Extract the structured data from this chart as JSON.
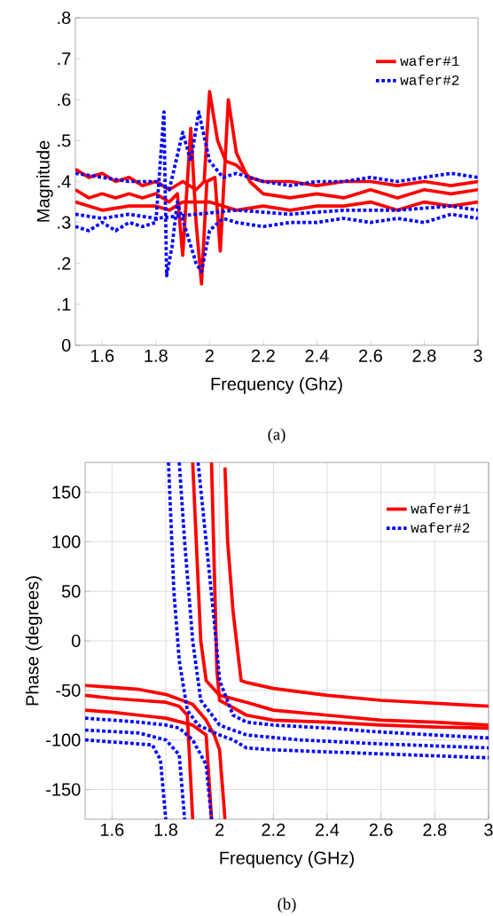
{
  "chart_data": [
    {
      "type": "line",
      "xlabel": "Frequency (Ghz)",
      "ylabel": "Magnitude",
      "annotations": [
        "(a)"
      ],
      "legend": "top right",
      "xlim": [
        1.5,
        3
      ],
      "xticks": [
        1.6,
        1.8,
        2,
        2.2,
        2.4,
        2.6,
        2.8,
        3
      ],
      "ylim": [
        0,
        0.8
      ],
      "yticks": [
        0,
        {
          "value": 0.1,
          "label": ".1"
        },
        {
          "value": 0.2,
          "label": ".2"
        },
        {
          "value": 0.3,
          "label": ".3"
        },
        {
          "value": 0.4,
          "label": ".4"
        },
        {
          "value": 0.5,
          "label": ".5"
        },
        {
          "value": 0.6,
          "label": ".6"
        },
        {
          "value": 0.7,
          "label": ".7"
        },
        {
          "value": 0.8,
          "label": ".8"
        }
      ],
      "series": [
        {
          "name": "wafer#1",
          "color": "#ff0000",
          "line_style": "solid",
          "x": [
            1.5,
            1.55,
            1.6,
            1.65,
            1.7,
            1.75,
            1.8,
            1.85,
            1.9,
            1.95,
            1.98,
            2.0,
            2.03,
            2.06,
            2.1,
            2.15,
            2.2,
            2.3,
            2.4,
            2.5,
            2.6,
            2.7,
            2.8,
            2.9,
            3.0
          ],
          "values": [
            0.43,
            0.41,
            0.42,
            0.4,
            0.41,
            0.39,
            0.4,
            0.38,
            0.4,
            0.38,
            0.4,
            0.62,
            0.5,
            0.45,
            0.44,
            0.41,
            0.4,
            0.4,
            0.39,
            0.4,
            0.4,
            0.39,
            0.4,
            0.39,
            0.4
          ]
        },
        {
          "color": "#ff0000",
          "line_style": "solid",
          "x": [
            1.5,
            1.55,
            1.6,
            1.65,
            1.7,
            1.75,
            1.8,
            1.85,
            1.88,
            1.9,
            1.93,
            1.95,
            1.97,
            1.99,
            2.02,
            2.04,
            2.07,
            2.1,
            2.15,
            2.2,
            2.3,
            2.4,
            2.5,
            2.6,
            2.7,
            2.8,
            2.9,
            3.0
          ],
          "values": [
            0.38,
            0.36,
            0.37,
            0.36,
            0.37,
            0.36,
            0.37,
            0.35,
            0.37,
            0.22,
            0.53,
            0.3,
            0.15,
            0.4,
            0.41,
            0.23,
            0.6,
            0.47,
            0.4,
            0.37,
            0.36,
            0.37,
            0.36,
            0.38,
            0.36,
            0.38,
            0.37,
            0.38
          ]
        },
        {
          "color": "#ff0000",
          "line_style": "solid",
          "x": [
            1.5,
            1.6,
            1.7,
            1.8,
            1.85,
            1.9,
            2.0,
            2.1,
            2.2,
            2.3,
            2.4,
            2.5,
            2.6,
            2.7,
            2.8,
            2.9,
            3.0
          ],
          "values": [
            0.35,
            0.33,
            0.34,
            0.34,
            0.33,
            0.35,
            0.35,
            0.33,
            0.34,
            0.33,
            0.34,
            0.34,
            0.35,
            0.33,
            0.35,
            0.34,
            0.35
          ]
        },
        {
          "name": "wafer#2",
          "color": "#0000ff",
          "line_style": "dotted",
          "x": [
            1.5,
            1.6,
            1.7,
            1.8,
            1.85,
            1.9,
            1.93,
            1.96,
            2.0,
            2.05,
            2.1,
            2.2,
            2.3,
            2.4,
            2.5,
            2.6,
            2.7,
            2.8,
            2.9,
            3.0
          ],
          "values": [
            0.42,
            0.41,
            0.4,
            0.4,
            0.38,
            0.52,
            0.45,
            0.57,
            0.45,
            0.41,
            0.42,
            0.4,
            0.39,
            0.4,
            0.4,
            0.41,
            0.4,
            0.41,
            0.42,
            0.41
          ]
        },
        {
          "color": "#0000ff",
          "line_style": "dotted",
          "x": [
            1.5,
            1.55,
            1.6,
            1.65,
            1.7,
            1.75,
            1.8,
            1.83,
            1.84,
            1.86,
            1.88,
            1.95,
            1.97,
            2.0,
            2.05,
            2.1,
            2.2,
            2.3,
            2.4,
            2.5,
            2.6,
            2.7,
            2.8,
            2.9,
            3.0
          ],
          "values": [
            0.29,
            0.28,
            0.3,
            0.28,
            0.3,
            0.29,
            0.3,
            0.57,
            0.17,
            0.24,
            0.35,
            0.2,
            0.18,
            0.28,
            0.31,
            0.3,
            0.29,
            0.3,
            0.3,
            0.31,
            0.3,
            0.31,
            0.3,
            0.32,
            0.31
          ]
        },
        {
          "color": "#0000ff",
          "line_style": "dotted",
          "x": [
            1.5,
            1.6,
            1.7,
            1.8,
            2.1,
            2.3,
            2.5,
            2.7,
            2.9,
            3.0
          ],
          "values": [
            0.32,
            0.31,
            0.32,
            0.31,
            0.33,
            0.32,
            0.33,
            0.33,
            0.34,
            0.33
          ]
        }
      ]
    },
    {
      "type": "line",
      "xlabel": "Frequency (GHz)",
      "ylabel": "Phase (degrees)",
      "annotations": [
        "(b)"
      ],
      "legend": "top right",
      "grid": true,
      "xlim": [
        1.5,
        3
      ],
      "xticks": [
        1.6,
        1.8,
        2,
        2.2,
        2.4,
        2.6,
        2.8,
        3
      ],
      "ylim": [
        -180,
        180
      ],
      "yticks": [
        -150,
        -100,
        -50,
        0,
        50,
        100,
        150
      ],
      "series": [
        {
          "name": "wafer#1",
          "color": "#ff0000",
          "line_style": "solid",
          "x": [
            1.5,
            1.6,
            1.7,
            1.8,
            1.9,
            1.95,
            1.98,
            2.0,
            2.02
          ],
          "values": [
            -45,
            -47,
            -49,
            -54,
            -64,
            -80,
            -95,
            -110,
            -180
          ]
        },
        {
          "color": "#ff0000",
          "line_style": "solid",
          "x": [
            2.02,
            2.03,
            2.05,
            2.08,
            2.1,
            2.2,
            2.4,
            2.6,
            2.8,
            3.0
          ],
          "values": [
            175,
            100,
            30,
            -40,
            -42,
            -48,
            -55,
            -60,
            -63,
            -66
          ]
        },
        {
          "color": "#ff0000",
          "line_style": "solid",
          "x": [
            1.5,
            1.6,
            1.7,
            1.8,
            1.85,
            1.88,
            1.9
          ],
          "values": [
            -55,
            -58,
            -60,
            -62,
            -66,
            -75,
            -180
          ]
        },
        {
          "color": "#ff0000",
          "line_style": "solid",
          "x": [
            1.9,
            1.93,
            1.95,
            2.0,
            2.1,
            2.2,
            2.4,
            2.6,
            2.8,
            3.0
          ],
          "values": [
            180,
            0,
            -40,
            -55,
            -62,
            -70,
            -75,
            -80,
            -82,
            -85
          ]
        },
        {
          "color": "#ff0000",
          "line_style": "solid",
          "x": [
            1.5,
            1.6,
            1.7,
            1.8,
            1.9,
            1.95,
            1.97
          ],
          "values": [
            -70,
            -72,
            -75,
            -78,
            -85,
            -95,
            -180
          ]
        },
        {
          "color": "#ff0000",
          "line_style": "solid",
          "x": [
            1.97,
            1.99,
            2.0,
            2.1,
            2.2,
            2.4,
            2.6,
            2.8,
            3.0
          ],
          "values": [
            180,
            -30,
            -60,
            -75,
            -80,
            -82,
            -85,
            -87,
            -88
          ]
        },
        {
          "name": "wafer#2",
          "color": "#0000ff",
          "line_style": "dotted",
          "x": [
            1.5,
            1.6,
            1.7,
            1.8,
            1.85,
            1.9,
            1.95,
            1.97
          ],
          "values": [
            -78,
            -80,
            -82,
            -85,
            -88,
            -100,
            -125,
            -180
          ]
        },
        {
          "color": "#0000ff",
          "line_style": "dotted",
          "x": [
            1.92,
            1.95,
            1.98,
            2.0,
            2.05,
            2.1,
            2.2,
            2.4,
            2.6,
            2.8,
            3.0
          ],
          "values": [
            180,
            100,
            20,
            -40,
            -75,
            -82,
            -85,
            -88,
            -92,
            -95,
            -98
          ]
        },
        {
          "color": "#0000ff",
          "line_style": "dotted",
          "x": [
            1.5,
            1.6,
            1.7,
            1.75,
            1.78,
            1.8
          ],
          "values": [
            -100,
            -102,
            -104,
            -105,
            -120,
            -180
          ]
        },
        {
          "color": "#0000ff",
          "line_style": "dotted",
          "x": [
            1.81,
            1.83,
            1.85,
            1.88,
            1.92,
            1.96,
            2.0,
            2.05,
            2.1,
            2.2,
            2.4,
            2.6,
            2.8,
            3.0
          ],
          "values": [
            180,
            50,
            -20,
            -70,
            -85,
            -90,
            -95,
            -100,
            -108,
            -110,
            -112,
            -114,
            -116,
            -118
          ]
        },
        {
          "color": "#0000ff",
          "line_style": "dotted",
          "x": [
            1.5,
            1.7,
            1.8,
            1.85,
            1.87
          ],
          "values": [
            -90,
            -93,
            -100,
            -115,
            -180
          ]
        },
        {
          "color": "#0000ff",
          "line_style": "dotted",
          "x": [
            1.85,
            1.87,
            1.9,
            1.93,
            2.0,
            2.1,
            2.3,
            2.6,
            3.0
          ],
          "values": [
            180,
            100,
            0,
            -60,
            -85,
            -95,
            -100,
            -104,
            -108
          ]
        }
      ]
    }
  ]
}
